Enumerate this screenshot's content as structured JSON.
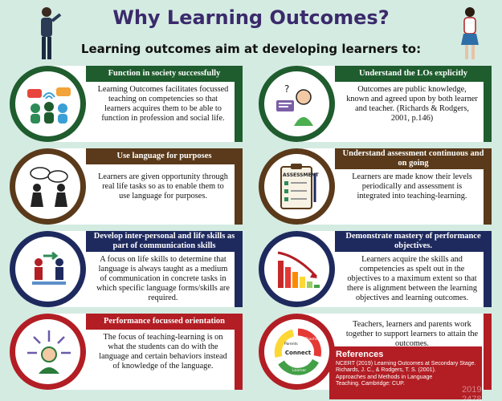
{
  "header": {
    "title": "Why Learning Outcomes?",
    "subtitle": "Learning outcomes aim at developing learners to:"
  },
  "colors": {
    "green": "#1f5c2e",
    "brown": "#5a3a1a",
    "navy": "#1e2a5e",
    "red": "#b21e24",
    "title": "#3b2a6b",
    "background": "#d4ebe2"
  },
  "cards": {
    "society": {
      "heading": "Function in society successfully",
      "text": "Learning Outcomes facilitates focussed teaching on competencies so that learners acquires them to be able to function in profession and social life.",
      "icon": "people-chat-icon"
    },
    "language": {
      "heading": "Use language for purposes",
      "text": "Learners are given opportunity through real life tasks so as to enable them to use language for purposes.",
      "icon": "conversation-icon"
    },
    "skills": {
      "heading": "Develop inter-personal and life skills as part of communication skills",
      "text": "A focus on life skills to determine that language is always taught as a medium of communication in concrete tasks in which specific language forms/skills are required.",
      "icon": "collaboration-icon"
    },
    "performance": {
      "heading": "Performance focussed orientation",
      "text": "The focus of teaching-learning is on what the students can do with the language and certain behaviors instead of knowledge of the language.",
      "icon": "learner-arrows-icon"
    },
    "understand": {
      "heading": "Understand the LOs explicitly",
      "text": "Outcomes are public knowledge, known and agreed upon by both learner and teacher. (Richards & Rodgers, 2001, p.146)",
      "icon": "thinking-learner-icon"
    },
    "assessment": {
      "heading": "Understand assessment continuous and on going",
      "text": "Learners are made know their levels periodically and assessment is integrated into teaching-learning.",
      "icon": "assessment-clipboard-icon",
      "clipboard_label": "ASSESSMENT"
    },
    "mastery": {
      "heading": "Demonstrate mastery of performance objectives.",
      "text": "Learners acquire the skills and competencies as spelt out in the objectives to a maximum extent so that there is alignment between the learning objectives and learning outcomes.",
      "icon": "bar-chart-arrow-icon"
    },
    "connect": {
      "text": "Teachers, learners and parents work together to support learners to attain the outcomes.",
      "icon": "connect-cycle-icon",
      "cycle_center": "Connect",
      "cycle_labels": [
        "Parents",
        "Teacher",
        "Learner"
      ]
    }
  },
  "references": {
    "heading": "References",
    "lines": [
      "NCERT (2019) Learning Outcomes at Secondary Stage.",
      "Richards, J. C., & Rodgers, T. S. (2001).",
      "Approaches and Methods in Language",
      "Teaching. Cambridge: CUP."
    ]
  },
  "watermark": "2019-2478"
}
